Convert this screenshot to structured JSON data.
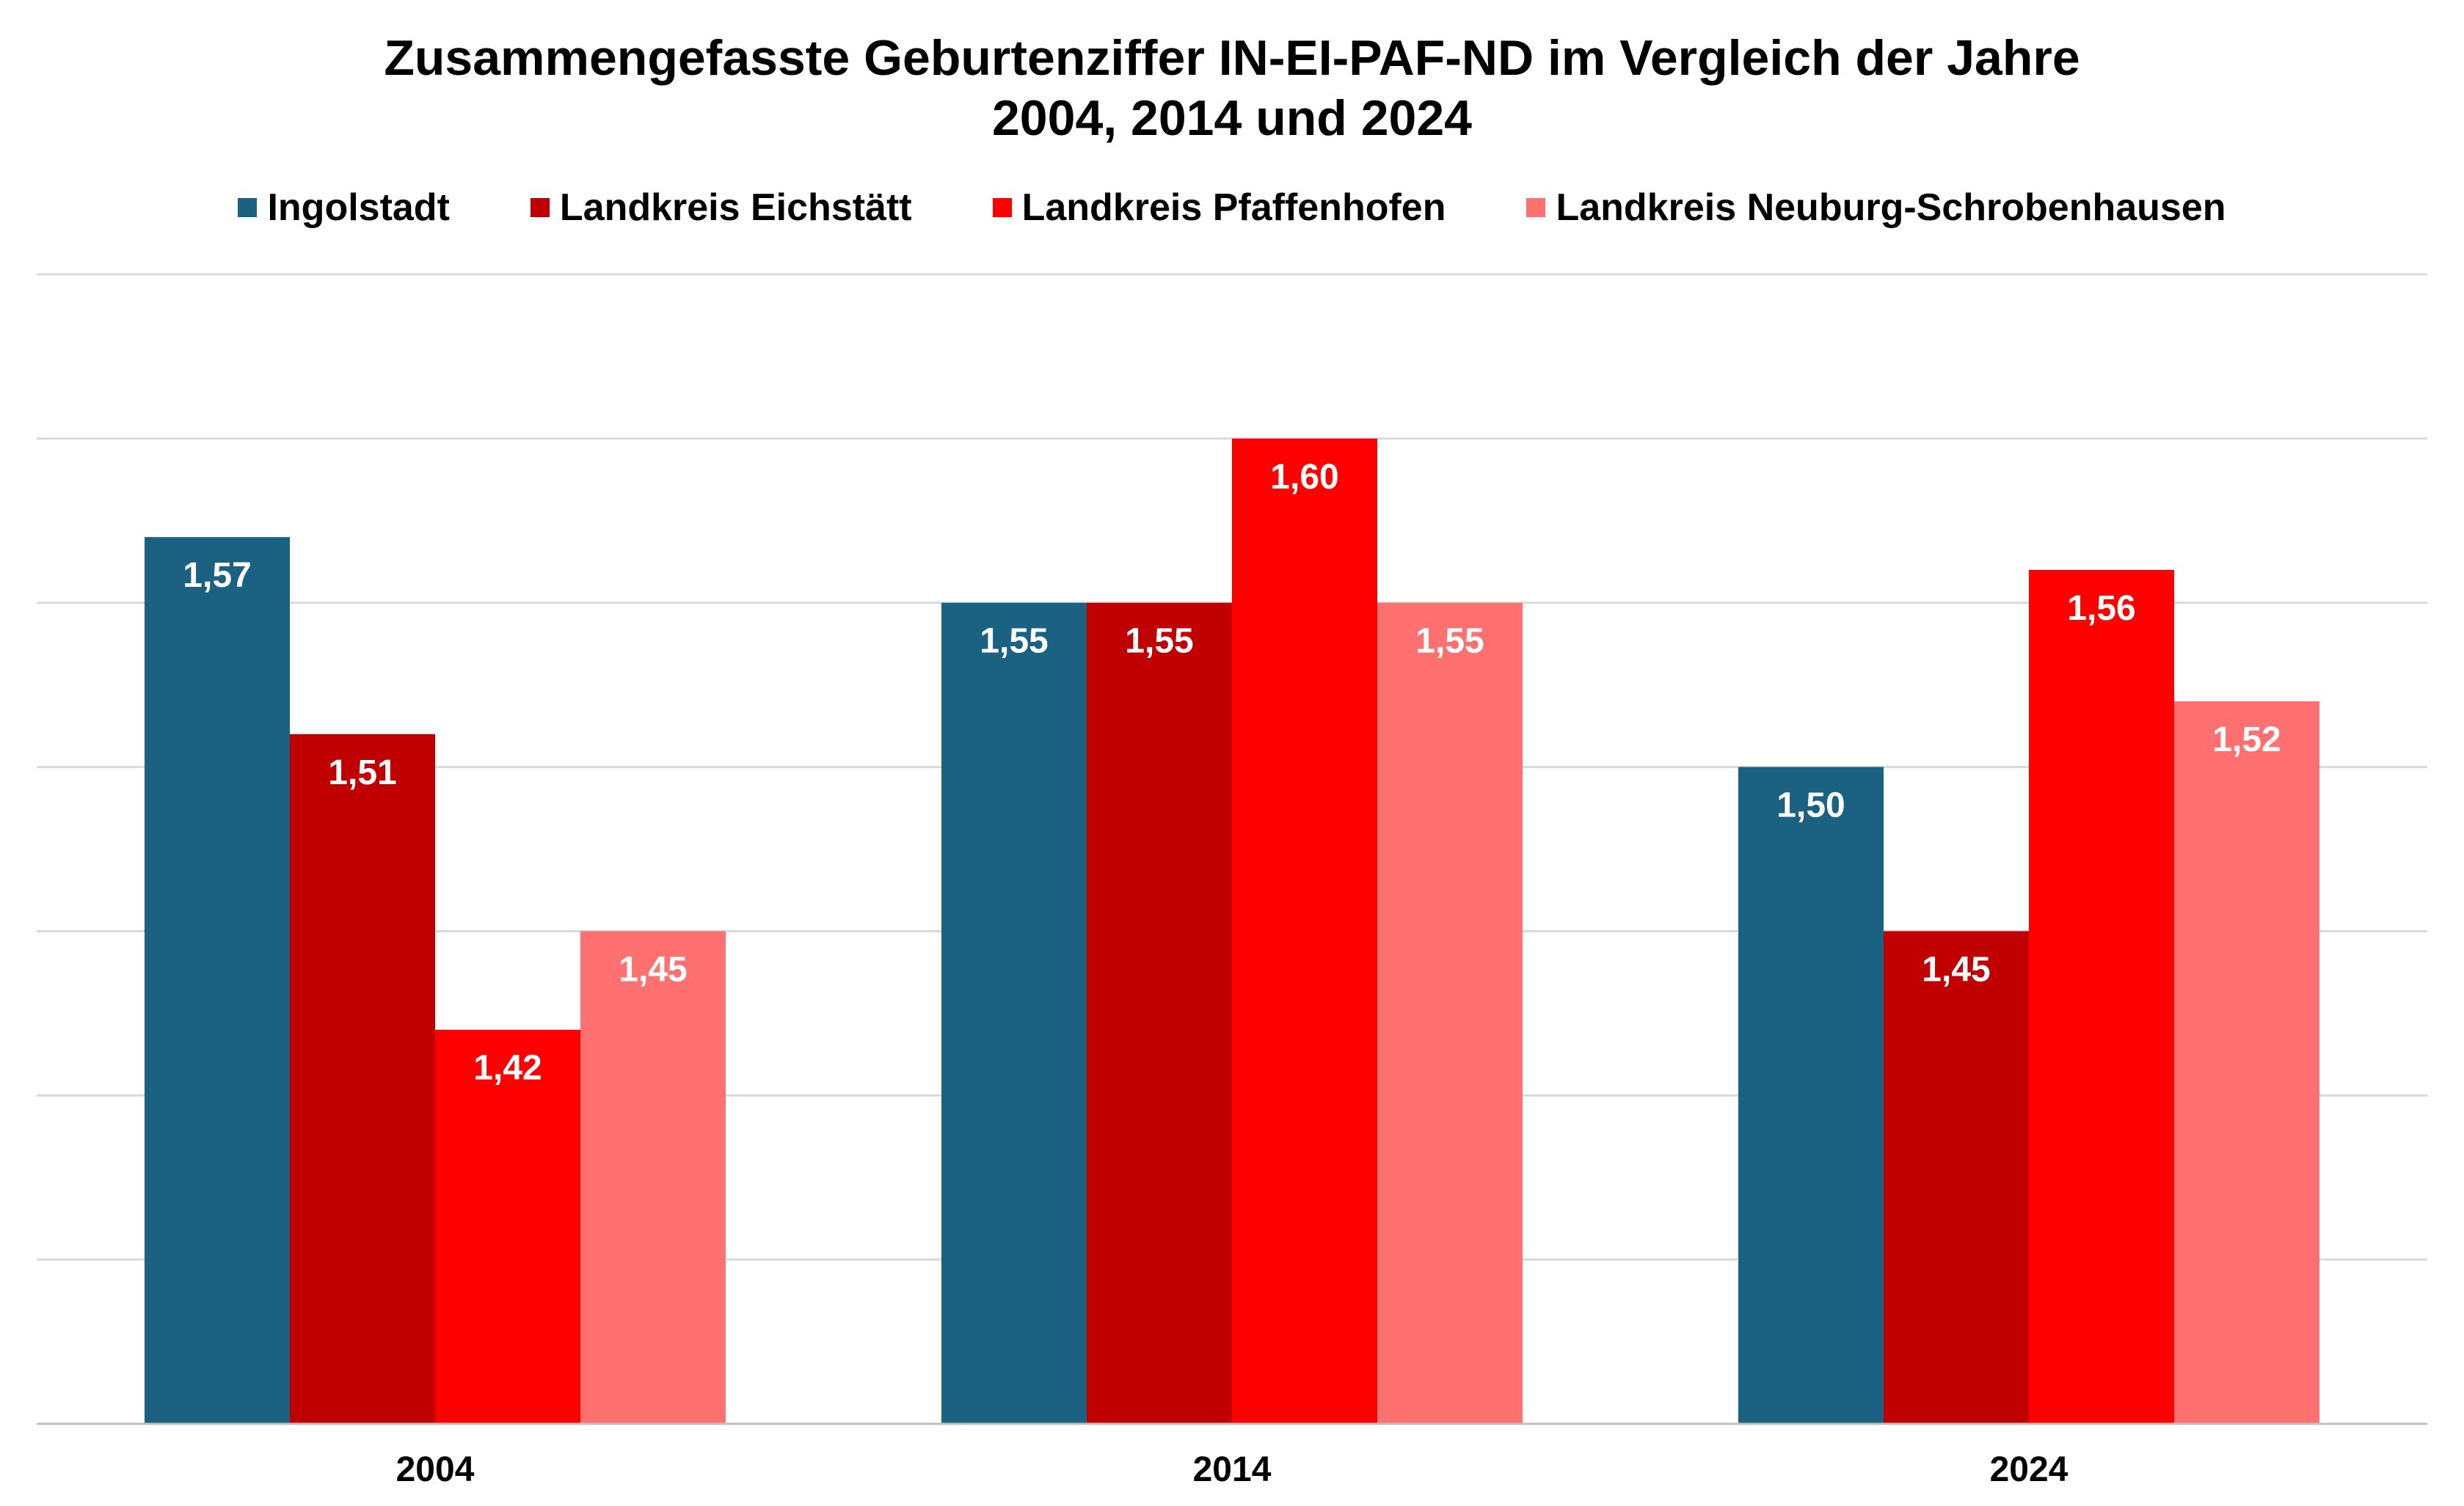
{
  "chart_data": {
    "type": "bar",
    "title_lines": [
      "Zusammengefasste Geburtenziffer IN-EI-PAF-ND im Vergleich der Jahre",
      "2004, 2014 und 2024"
    ],
    "categories": [
      "2004",
      "2014",
      "2024"
    ],
    "series": [
      {
        "name": "Ingolstadt",
        "color": "#1a6182",
        "values": [
          1.57,
          1.55,
          1.5
        ],
        "labels": [
          "1,57",
          "1,55",
          "1,50"
        ]
      },
      {
        "name": "Landkreis Eichstätt",
        "color": "#c00000",
        "values": [
          1.51,
          1.55,
          1.45
        ],
        "labels": [
          "1,51",
          "1,55",
          "1,45"
        ]
      },
      {
        "name": "Landkreis Pfaffenhofen",
        "color": "#ff0000",
        "values": [
          1.42,
          1.6,
          1.56
        ],
        "labels": [
          "1,42",
          "1,60",
          "1,56"
        ]
      },
      {
        "name": "Landkreis Neuburg-Schrobenhausen",
        "color": "#ff7070",
        "values": [
          1.45,
          1.55,
          1.52
        ],
        "labels": [
          "1,45",
          "1,55",
          "1,52"
        ]
      }
    ],
    "ylim": [
      1.3,
      1.65
    ],
    "gridlines": [
      1.35,
      1.4,
      1.45,
      1.5,
      1.55,
      1.6,
      1.65
    ],
    "y_tick_labels_shown": false,
    "grid": true,
    "legend_position": "top"
  }
}
